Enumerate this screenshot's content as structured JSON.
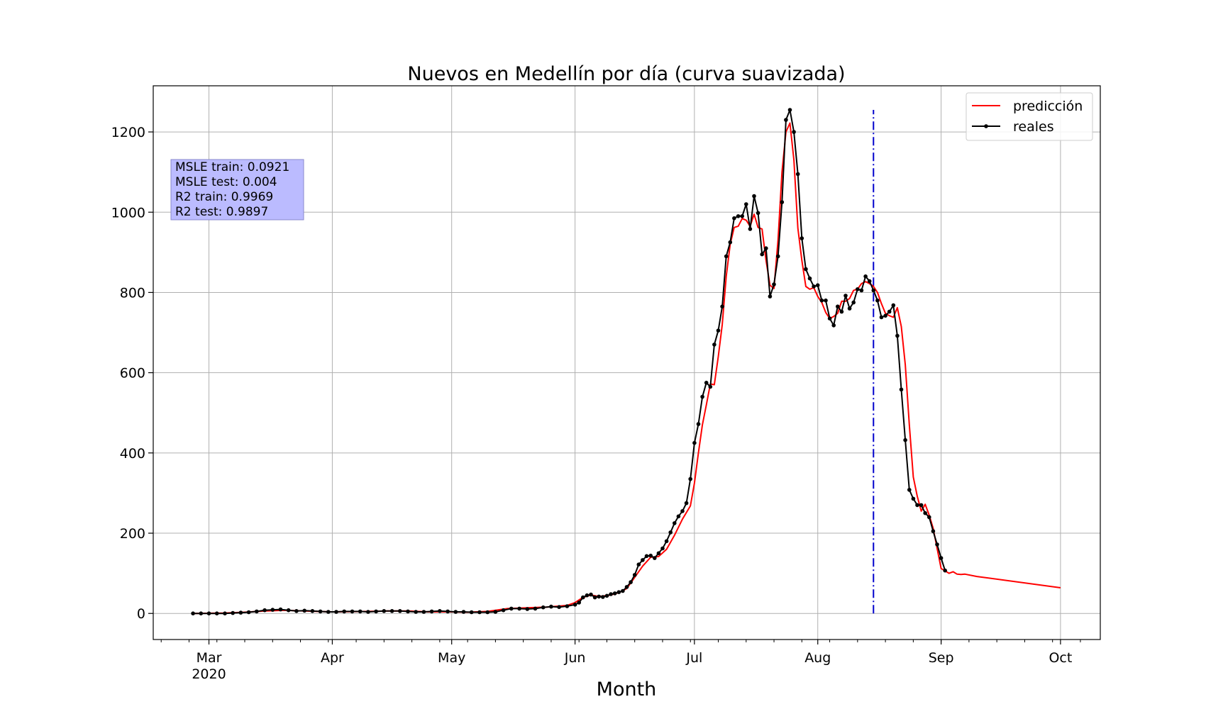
{
  "chart_data": {
    "type": "line",
    "title": "Nuevos en Medellín por día (curva suavizada)",
    "xlabel": "Month",
    "ylabel": "",
    "x_axis": {
      "ticks": [
        {
          "label": "Mar",
          "sublabel": "2020",
          "date": "2020-03-01"
        },
        {
          "label": "Apr",
          "date": "2020-04-01"
        },
        {
          "label": "May",
          "date": "2020-05-01"
        },
        {
          "label": "Jun",
          "date": "2020-06-01"
        },
        {
          "label": "Jul",
          "date": "2020-07-01"
        },
        {
          "label": "Aug",
          "date": "2020-08-01"
        },
        {
          "label": "Sep",
          "date": "2020-09-01"
        },
        {
          "label": "Oct",
          "date": "2020-10-01"
        }
      ],
      "range": [
        "2020-02-16",
        "2020-10-11"
      ]
    },
    "ylim": [
      -65,
      1315
    ],
    "y_ticks": [
      0,
      200,
      400,
      600,
      800,
      1000,
      1200
    ],
    "grid": true,
    "legend_placement": "top-right",
    "vertical_line": {
      "date": "2020-08-15",
      "y_range": [
        0,
        1255
      ],
      "color": "#0000cc",
      "style": "dash-dot"
    },
    "annotation_box": {
      "lines": [
        "MSLE train: 0.0921",
        "MSLE test: 0.004",
        "R2 train: 0.9969",
        "R2 test: 0.9897"
      ],
      "placement": "top-left"
    },
    "series": [
      {
        "name": "predicción",
        "color": "#ff0000",
        "marker": false,
        "points": [
          [
            "2020-02-26",
            0
          ],
          [
            "2020-03-05",
            1
          ],
          [
            "2020-03-10",
            3
          ],
          [
            "2020-03-15",
            6
          ],
          [
            "2020-03-20",
            8
          ],
          [
            "2020-03-25",
            6
          ],
          [
            "2020-04-01",
            4
          ],
          [
            "2020-04-10",
            5
          ],
          [
            "2020-04-15",
            6
          ],
          [
            "2020-04-20",
            6
          ],
          [
            "2020-04-25",
            4
          ],
          [
            "2020-05-01",
            4
          ],
          [
            "2020-05-05",
            3
          ],
          [
            "2020-05-10",
            5
          ],
          [
            "2020-05-15",
            12
          ],
          [
            "2020-05-20",
            14
          ],
          [
            "2020-05-25",
            16
          ],
          [
            "2020-05-30",
            20
          ],
          [
            "2020-06-01",
            27
          ],
          [
            "2020-06-03",
            40
          ],
          [
            "2020-06-05",
            46
          ],
          [
            "2020-06-07",
            42
          ],
          [
            "2020-06-10",
            46
          ],
          [
            "2020-06-12",
            52
          ],
          [
            "2020-06-14",
            62
          ],
          [
            "2020-06-16",
            90
          ],
          [
            "2020-06-18",
            118
          ],
          [
            "2020-06-20",
            140
          ],
          [
            "2020-06-22",
            142
          ],
          [
            "2020-06-24",
            160
          ],
          [
            "2020-06-26",
            195
          ],
          [
            "2020-06-28",
            235
          ],
          [
            "2020-06-30",
            268
          ],
          [
            "2020-07-01",
            325
          ],
          [
            "2020-07-02",
            400
          ],
          [
            "2020-07-03",
            470
          ],
          [
            "2020-07-04",
            520
          ],
          [
            "2020-07-05",
            572
          ],
          [
            "2020-07-06",
            570
          ],
          [
            "2020-07-07",
            640
          ],
          [
            "2020-07-08",
            720
          ],
          [
            "2020-07-09",
            840
          ],
          [
            "2020-07-10",
            920
          ],
          [
            "2020-07-11",
            962
          ],
          [
            "2020-07-12",
            965
          ],
          [
            "2020-07-13",
            984
          ],
          [
            "2020-07-14",
            980
          ],
          [
            "2020-07-15",
            965
          ],
          [
            "2020-07-16",
            995
          ],
          [
            "2020-07-17",
            962
          ],
          [
            "2020-07-18",
            958
          ],
          [
            "2020-07-19",
            880
          ],
          [
            "2020-07-20",
            818
          ],
          [
            "2020-07-21",
            810
          ],
          [
            "2020-07-22",
            930
          ],
          [
            "2020-07-23",
            1100
          ],
          [
            "2020-07-24",
            1200
          ],
          [
            "2020-07-25",
            1222
          ],
          [
            "2020-07-26",
            1130
          ],
          [
            "2020-07-27",
            960
          ],
          [
            "2020-07-28",
            880
          ],
          [
            "2020-07-29",
            815
          ],
          [
            "2020-07-30",
            808
          ],
          [
            "2020-07-31",
            812
          ],
          [
            "2020-08-01",
            790
          ],
          [
            "2020-08-02",
            775
          ],
          [
            "2020-08-03",
            750
          ],
          [
            "2020-08-04",
            735
          ],
          [
            "2020-08-05",
            740
          ],
          [
            "2020-08-06",
            748
          ],
          [
            "2020-08-07",
            778
          ],
          [
            "2020-08-08",
            778
          ],
          [
            "2020-08-09",
            785
          ],
          [
            "2020-08-10",
            805
          ],
          [
            "2020-08-11",
            808
          ],
          [
            "2020-08-12",
            822
          ],
          [
            "2020-08-13",
            827
          ],
          [
            "2020-08-14",
            822
          ],
          [
            "2020-08-15",
            815
          ],
          [
            "2020-08-16",
            800
          ],
          [
            "2020-08-17",
            772
          ],
          [
            "2020-08-18",
            748
          ],
          [
            "2020-08-19",
            742
          ],
          [
            "2020-08-20",
            738
          ],
          [
            "2020-08-21",
            762
          ],
          [
            "2020-08-22",
            715
          ],
          [
            "2020-08-23",
            620
          ],
          [
            "2020-08-24",
            470
          ],
          [
            "2020-08-25",
            340
          ],
          [
            "2020-08-26",
            292
          ],
          [
            "2020-08-27",
            255
          ],
          [
            "2020-08-28",
            272
          ],
          [
            "2020-08-29",
            245
          ],
          [
            "2020-08-30",
            212
          ],
          [
            "2020-08-31",
            162
          ],
          [
            "2020-09-01",
            112
          ],
          [
            "2020-09-02",
            106
          ],
          [
            "2020-09-03",
            100
          ],
          [
            "2020-09-04",
            104
          ],
          [
            "2020-09-05",
            98
          ],
          [
            "2020-09-06",
            97
          ],
          [
            "2020-09-07",
            98
          ],
          [
            "2020-09-10",
            92
          ],
          [
            "2020-10-01",
            64
          ]
        ]
      },
      {
        "name": "reales",
        "color": "#000000",
        "marker": true,
        "points": [
          [
            "2020-02-26",
            0
          ],
          [
            "2020-02-28",
            0
          ],
          [
            "2020-03-01",
            0
          ],
          [
            "2020-03-03",
            0
          ],
          [
            "2020-03-05",
            0
          ],
          [
            "2020-03-07",
            1
          ],
          [
            "2020-03-09",
            2
          ],
          [
            "2020-03-11",
            3
          ],
          [
            "2020-03-13",
            5
          ],
          [
            "2020-03-15",
            8
          ],
          [
            "2020-03-17",
            9
          ],
          [
            "2020-03-19",
            10
          ],
          [
            "2020-03-21",
            8
          ],
          [
            "2020-03-23",
            6
          ],
          [
            "2020-03-25",
            7
          ],
          [
            "2020-03-27",
            6
          ],
          [
            "2020-03-29",
            5
          ],
          [
            "2020-03-31",
            4
          ],
          [
            "2020-04-02",
            4
          ],
          [
            "2020-04-04",
            5
          ],
          [
            "2020-04-06",
            5
          ],
          [
            "2020-04-08",
            5
          ],
          [
            "2020-04-10",
            4
          ],
          [
            "2020-04-12",
            5
          ],
          [
            "2020-04-14",
            6
          ],
          [
            "2020-04-16",
            6
          ],
          [
            "2020-04-18",
            6
          ],
          [
            "2020-04-20",
            5
          ],
          [
            "2020-04-22",
            4
          ],
          [
            "2020-04-24",
            4
          ],
          [
            "2020-04-26",
            5
          ],
          [
            "2020-04-28",
            6
          ],
          [
            "2020-04-30",
            5
          ],
          [
            "2020-05-02",
            4
          ],
          [
            "2020-05-04",
            4
          ],
          [
            "2020-05-06",
            3
          ],
          [
            "2020-05-08",
            3
          ],
          [
            "2020-05-10",
            3
          ],
          [
            "2020-05-12",
            4
          ],
          [
            "2020-05-14",
            8
          ],
          [
            "2020-05-16",
            12
          ],
          [
            "2020-05-18",
            12
          ],
          [
            "2020-05-20",
            11
          ],
          [
            "2020-05-22",
            12
          ],
          [
            "2020-05-24",
            15
          ],
          [
            "2020-05-26",
            17
          ],
          [
            "2020-05-28",
            16
          ],
          [
            "2020-05-30",
            18
          ],
          [
            "2020-06-01",
            22
          ],
          [
            "2020-06-02",
            27
          ],
          [
            "2020-06-03",
            40
          ],
          [
            "2020-06-04",
            45
          ],
          [
            "2020-06-05",
            47
          ],
          [
            "2020-06-06",
            40
          ],
          [
            "2020-06-07",
            42
          ],
          [
            "2020-06-08",
            41
          ],
          [
            "2020-06-09",
            44
          ],
          [
            "2020-06-10",
            48
          ],
          [
            "2020-06-11",
            50
          ],
          [
            "2020-06-12",
            53
          ],
          [
            "2020-06-13",
            56
          ],
          [
            "2020-06-14",
            66
          ],
          [
            "2020-06-15",
            78
          ],
          [
            "2020-06-16",
            96
          ],
          [
            "2020-06-17",
            122
          ],
          [
            "2020-06-18",
            133
          ],
          [
            "2020-06-19",
            143
          ],
          [
            "2020-06-20",
            144
          ],
          [
            "2020-06-21",
            138
          ],
          [
            "2020-06-22",
            150
          ],
          [
            "2020-06-23",
            162
          ],
          [
            "2020-06-24",
            180
          ],
          [
            "2020-06-25",
            202
          ],
          [
            "2020-06-26",
            225
          ],
          [
            "2020-06-27",
            242
          ],
          [
            "2020-06-28",
            255
          ],
          [
            "2020-06-29",
            275
          ],
          [
            "2020-06-30",
            335
          ],
          [
            "2020-07-01",
            425
          ],
          [
            "2020-07-02",
            472
          ],
          [
            "2020-07-03",
            540
          ],
          [
            "2020-07-04",
            575
          ],
          [
            "2020-07-05",
            565
          ],
          [
            "2020-07-06",
            670
          ],
          [
            "2020-07-07",
            705
          ],
          [
            "2020-07-08",
            765
          ],
          [
            "2020-07-09",
            890
          ],
          [
            "2020-07-10",
            925
          ],
          [
            "2020-07-11",
            985
          ],
          [
            "2020-07-12",
            990
          ],
          [
            "2020-07-13",
            990
          ],
          [
            "2020-07-14",
            1020
          ],
          [
            "2020-07-15",
            958
          ],
          [
            "2020-07-16",
            1040
          ],
          [
            "2020-07-17",
            998
          ],
          [
            "2020-07-18",
            895
          ],
          [
            "2020-07-19",
            910
          ],
          [
            "2020-07-20",
            790
          ],
          [
            "2020-07-21",
            820
          ],
          [
            "2020-07-22",
            890
          ],
          [
            "2020-07-23",
            1025
          ],
          [
            "2020-07-24",
            1230
          ],
          [
            "2020-07-25",
            1255
          ],
          [
            "2020-07-26",
            1200
          ],
          [
            "2020-07-27",
            1095
          ],
          [
            "2020-07-28",
            935
          ],
          [
            "2020-07-29",
            858
          ],
          [
            "2020-07-30",
            835
          ],
          [
            "2020-07-31",
            815
          ],
          [
            "2020-08-01",
            818
          ],
          [
            "2020-08-02",
            780
          ],
          [
            "2020-08-03",
            780
          ],
          [
            "2020-08-04",
            735
          ],
          [
            "2020-08-05",
            718
          ],
          [
            "2020-08-06",
            765
          ],
          [
            "2020-08-07",
            752
          ],
          [
            "2020-08-08",
            792
          ],
          [
            "2020-08-09",
            760
          ],
          [
            "2020-08-10",
            775
          ],
          [
            "2020-08-11",
            808
          ],
          [
            "2020-08-12",
            805
          ],
          [
            "2020-08-13",
            840
          ],
          [
            "2020-08-14",
            828
          ],
          [
            "2020-08-15",
            805
          ],
          [
            "2020-08-16",
            780
          ],
          [
            "2020-08-17",
            738
          ],
          [
            "2020-08-18",
            742
          ],
          [
            "2020-08-19",
            752
          ],
          [
            "2020-08-20",
            768
          ],
          [
            "2020-08-21",
            692
          ],
          [
            "2020-08-22",
            558
          ],
          [
            "2020-08-23",
            432
          ],
          [
            "2020-08-24",
            308
          ],
          [
            "2020-08-25",
            286
          ],
          [
            "2020-08-26",
            270
          ],
          [
            "2020-08-27",
            270
          ],
          [
            "2020-08-28",
            250
          ],
          [
            "2020-08-29",
            240
          ],
          [
            "2020-08-30",
            205
          ],
          [
            "2020-08-31",
            172
          ],
          [
            "2020-09-01",
            138
          ],
          [
            "2020-09-02",
            107
          ]
        ]
      }
    ]
  }
}
